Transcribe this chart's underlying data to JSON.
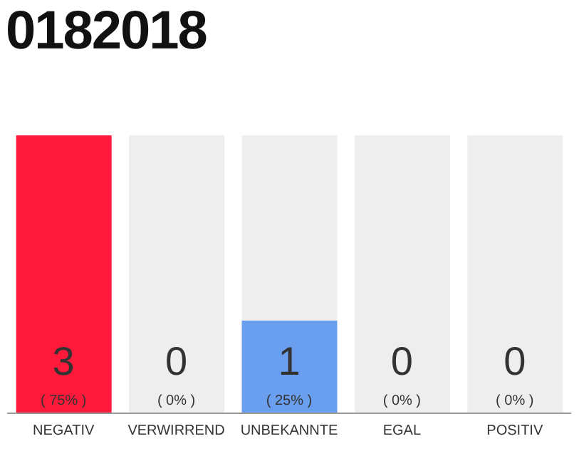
{
  "chart_data": {
    "type": "bar",
    "title": "0182018",
    "stacked": true,
    "categories": [
      "NEGATIV",
      "VERWIRREND",
      "UNBEKANNTE",
      "EGAL",
      "POSITIV"
    ],
    "series": [
      {
        "values": [
          75,
          0,
          25,
          0,
          0
        ],
        "colors": [
          "#ff1a3c",
          "#eeeeee",
          "#6a9eee",
          "#eeeeee",
          "#eeeeee"
        ],
        "value_labels": [
          "( 75% )",
          null,
          "( 25% )",
          null,
          null
        ]
      },
      {
        "values": [
          0,
          75,
          50,
          75,
          75
        ],
        "color": "#eeeeee"
      }
    ],
    "annotations": [
      "3",
      "0",
      "1",
      "0",
      "0",
      "( 0% )",
      "( 0% )",
      "( 0% )"
    ],
    "grid": false,
    "legend": false
  }
}
